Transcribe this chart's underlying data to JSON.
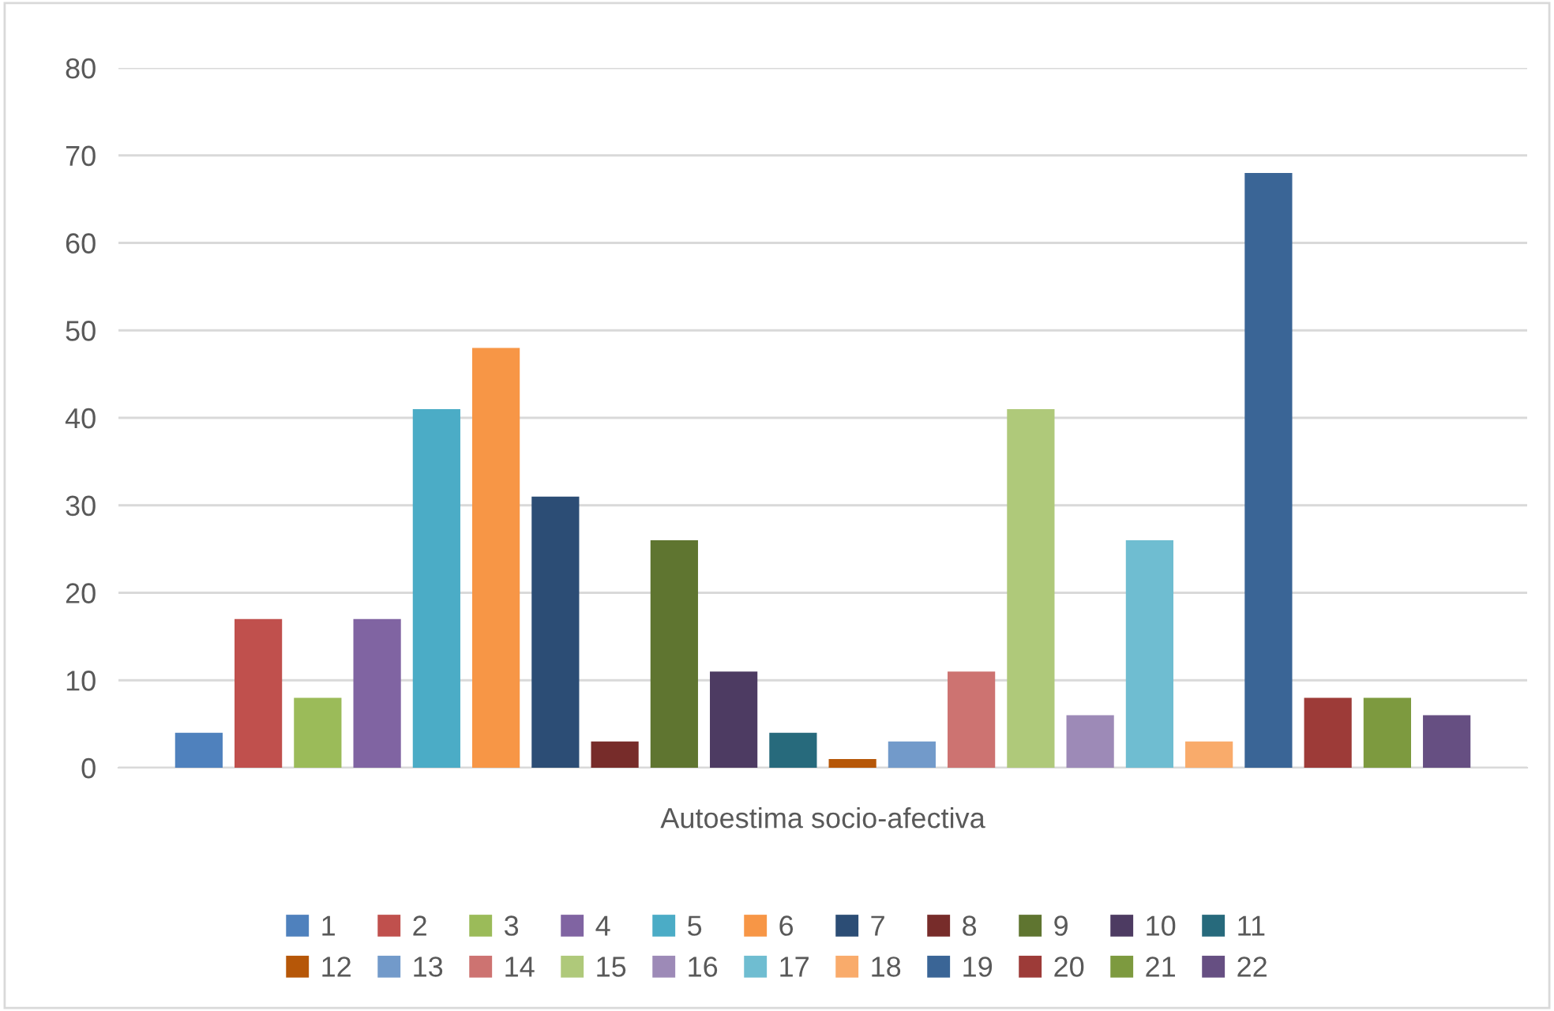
{
  "chart_data": {
    "type": "bar",
    "categories": [
      "Autoestima socio-afectiva"
    ],
    "series": [
      {
        "name": "1",
        "color": "#4f81bd",
        "values": [
          4
        ]
      },
      {
        "name": "2",
        "color": "#c0504d",
        "values": [
          17
        ]
      },
      {
        "name": "3",
        "color": "#9bbb59",
        "values": [
          8
        ]
      },
      {
        "name": "4",
        "color": "#8064a2",
        "values": [
          17
        ]
      },
      {
        "name": "5",
        "color": "#4bacc6",
        "values": [
          41
        ]
      },
      {
        "name": "6",
        "color": "#f79646",
        "values": [
          48
        ]
      },
      {
        "name": "7",
        "color": "#2c4d75",
        "values": [
          31
        ]
      },
      {
        "name": "8",
        "color": "#772c2a",
        "values": [
          3
        ]
      },
      {
        "name": "9",
        "color": "#5f7530",
        "values": [
          26
        ]
      },
      {
        "name": "10",
        "color": "#4d3b62",
        "values": [
          11
        ]
      },
      {
        "name": "11",
        "color": "#276a7c",
        "values": [
          4
        ]
      },
      {
        "name": "12",
        "color": "#b65708",
        "values": [
          1
        ]
      },
      {
        "name": "13",
        "color": "#729aca",
        "values": [
          3
        ]
      },
      {
        "name": "14",
        "color": "#cd7371",
        "values": [
          11
        ]
      },
      {
        "name": "15",
        "color": "#afc97a",
        "values": [
          41
        ]
      },
      {
        "name": "16",
        "color": "#9d8ab7",
        "values": [
          6
        ]
      },
      {
        "name": "17",
        "color": "#6fbdd1",
        "values": [
          26
        ]
      },
      {
        "name": "18",
        "color": "#f9ab6b",
        "values": [
          3
        ]
      },
      {
        "name": "19",
        "color": "#3a6596",
        "values": [
          68
        ]
      },
      {
        "name": "20",
        "color": "#9d3b38",
        "values": [
          8
        ]
      },
      {
        "name": "21",
        "color": "#7d9a3f",
        "values": [
          8
        ]
      },
      {
        "name": "22",
        "color": "#664f82",
        "values": [
          6
        ]
      }
    ],
    "ylim": [
      0,
      80
    ],
    "yticks": [
      0,
      10,
      20,
      30,
      40,
      50,
      60,
      70,
      80
    ],
    "grid": "y",
    "legend": "bottom"
  }
}
